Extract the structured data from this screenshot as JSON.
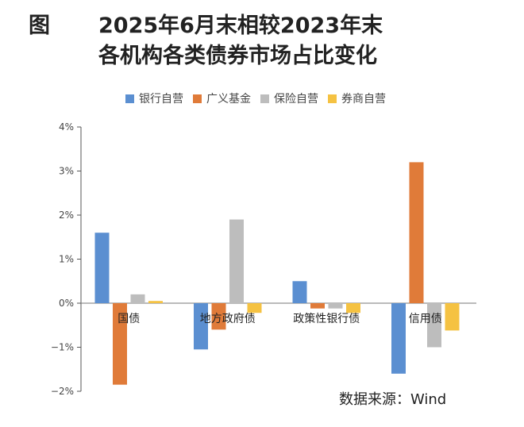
{
  "title": {
    "fig_label": "图",
    "line1": "2025年6月末相较2023年末",
    "line2": "各机构各类债券市场占比变化"
  },
  "source": "数据来源：Wind",
  "chart_data": {
    "type": "bar",
    "categories": [
      "国债",
      "地方政府债",
      "政策性银行债",
      "信用债"
    ],
    "series": [
      {
        "name": "银行自营",
        "color": "#5B8FD1",
        "values": [
          1.6,
          -1.05,
          0.5,
          -1.6
        ]
      },
      {
        "name": "广义基金",
        "color": "#E07B39",
        "values": [
          -1.85,
          -0.6,
          -0.12,
          3.2
        ]
      },
      {
        "name": "保险自营",
        "color": "#BDBDBD",
        "values": [
          0.2,
          1.9,
          -0.12,
          -1.0
        ]
      },
      {
        "name": "券商自营",
        "color": "#F5C242",
        "values": [
          0.05,
          -0.22,
          -0.22,
          -0.62
        ]
      }
    ],
    "ylim": [
      -2,
      4
    ],
    "yticks": [
      -2,
      -1,
      0,
      1,
      2,
      3,
      4
    ],
    "ytick_labels": [
      "−2%",
      "−1%",
      "0%",
      "1%",
      "2%",
      "3%",
      "4%"
    ],
    "grid": false,
    "legend_position": "top"
  }
}
